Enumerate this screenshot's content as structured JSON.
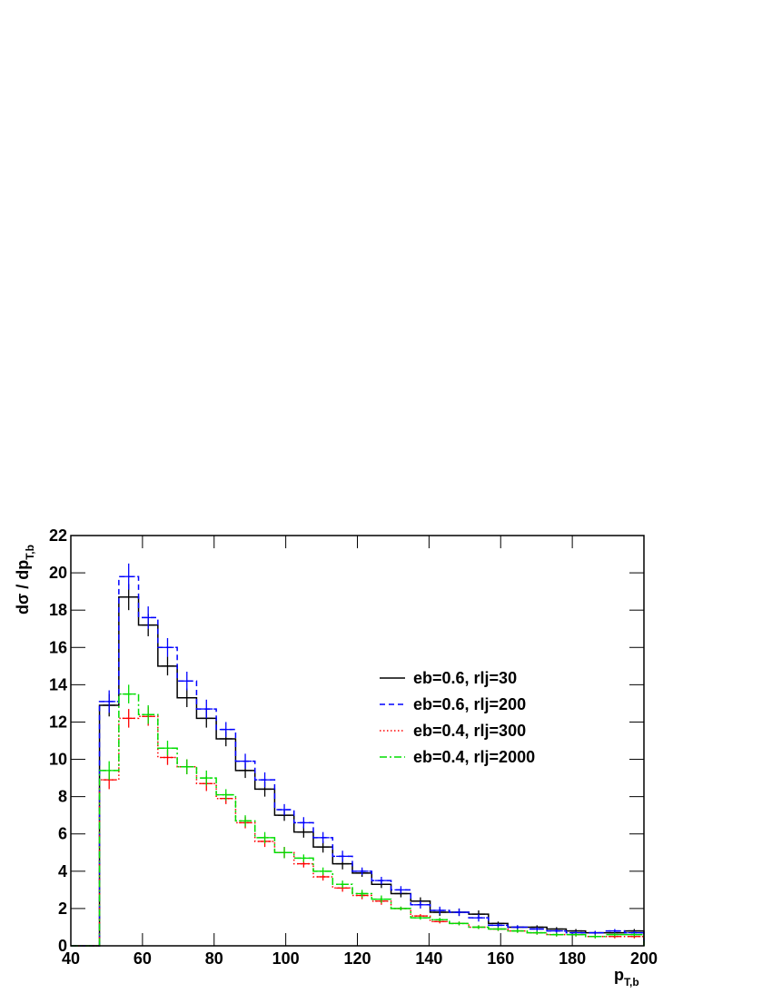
{
  "chart_data": {
    "type": "histogram",
    "ylabel": {
      "text": "dσ / dp",
      "sub": "T,b"
    },
    "xlabel": {
      "text": "p",
      "sub": "T,b"
    },
    "bins": [
      48,
      53.4,
      58.9,
      64.3,
      69.7,
      75.1,
      80.6,
      86,
      91.4,
      96.9,
      102.3,
      107.7,
      113.1,
      118.6,
      124,
      129.4,
      134.9,
      140.3,
      145.7,
      151.1,
      156.6,
      162,
      167.4,
      172.9,
      178.3,
      183.7,
      189.1,
      194.6,
      200
    ],
    "series": [
      {
        "name": "eb=0.6, rlj=30",
        "color": "#000000",
        "dash": "none",
        "values": [
          12.9,
          18.7,
          17.2,
          15.0,
          13.3,
          12.2,
          11.1,
          9.4,
          8.4,
          7.0,
          6.1,
          5.3,
          4.4,
          3.9,
          3.3,
          2.8,
          2.4,
          1.8,
          1.8,
          1.7,
          1.2,
          1.0,
          1.0,
          0.9,
          0.8,
          0.7,
          0.7,
          0.8
        ],
        "errors": [
          0.6,
          0.7,
          0.6,
          0.5,
          0.5,
          0.5,
          0.4,
          0.4,
          0.4,
          0.3,
          0.3,
          0.3,
          0.3,
          0.2,
          0.2,
          0.2,
          0.2,
          0.2,
          0.2,
          0.2,
          0.1,
          0.1,
          0.1,
          0.1,
          0.1,
          0.1,
          0.1,
          0.1
        ]
      },
      {
        "name": "eb=0.6, rlj=200",
        "color": "#0000ff",
        "dash": "6,4",
        "values": [
          13.1,
          19.8,
          17.6,
          16.0,
          14.2,
          12.7,
          11.6,
          9.9,
          8.9,
          7.3,
          6.6,
          5.8,
          4.8,
          4.0,
          3.5,
          3.0,
          2.2,
          1.9,
          1.8,
          1.5,
          1.1,
          1.0,
          0.9,
          0.8,
          0.7,
          0.7,
          0.8,
          0.7
        ],
        "errors": [
          0.6,
          0.7,
          0.6,
          0.5,
          0.5,
          0.5,
          0.4,
          0.4,
          0.4,
          0.3,
          0.3,
          0.3,
          0.3,
          0.2,
          0.2,
          0.2,
          0.2,
          0.2,
          0.2,
          0.2,
          0.1,
          0.1,
          0.1,
          0.1,
          0.1,
          0.1,
          0.1,
          0.1
        ]
      },
      {
        "name": "eb=0.4, rlj=300",
        "color": "#ff0000",
        "dash": "1.5,2.5",
        "values": [
          8.9,
          12.2,
          12.3,
          10.1,
          9.6,
          8.7,
          7.9,
          6.6,
          5.6,
          5.0,
          4.4,
          3.7,
          3.1,
          2.7,
          2.4,
          2.0,
          1.6,
          1.3,
          1.2,
          1.0,
          0.9,
          0.8,
          0.7,
          0.6,
          0.6,
          0.5,
          0.5,
          0.5
        ],
        "errors": [
          0.5,
          0.5,
          0.5,
          0.4,
          0.4,
          0.4,
          0.3,
          0.3,
          0.3,
          0.3,
          0.2,
          0.2,
          0.2,
          0.2,
          0.2,
          0.1,
          0.1,
          0.1,
          0.1,
          0.1,
          0.1,
          0.1,
          0.1,
          0.1,
          0.1,
          0.1,
          0.1,
          0.1
        ]
      },
      {
        "name": "eb=0.4, rlj=2000",
        "color": "#00dd00",
        "dash": "8,3,2,3",
        "values": [
          9.4,
          13.5,
          12.4,
          10.6,
          9.6,
          9.0,
          8.1,
          6.7,
          5.8,
          5.0,
          4.7,
          4.0,
          3.3,
          2.8,
          2.5,
          2.0,
          1.5,
          1.4,
          1.2,
          1.0,
          0.9,
          0.8,
          0.7,
          0.6,
          0.6,
          0.5,
          0.6,
          0.6
        ],
        "errors": [
          0.5,
          0.5,
          0.5,
          0.4,
          0.4,
          0.4,
          0.3,
          0.3,
          0.3,
          0.3,
          0.2,
          0.2,
          0.2,
          0.2,
          0.2,
          0.1,
          0.1,
          0.1,
          0.1,
          0.1,
          0.1,
          0.1,
          0.1,
          0.1,
          0.1,
          0.1,
          0.1,
          0.1
        ]
      }
    ],
    "xlim": [
      40,
      200
    ],
    "xticks": [
      40,
      60,
      80,
      100,
      120,
      140,
      160,
      180,
      200
    ],
    "ylim": [
      0,
      22
    ],
    "yticks": [
      0,
      2,
      4,
      6,
      8,
      10,
      12,
      14,
      16,
      18,
      20,
      22
    ],
    "grid": false,
    "legend": "right"
  }
}
